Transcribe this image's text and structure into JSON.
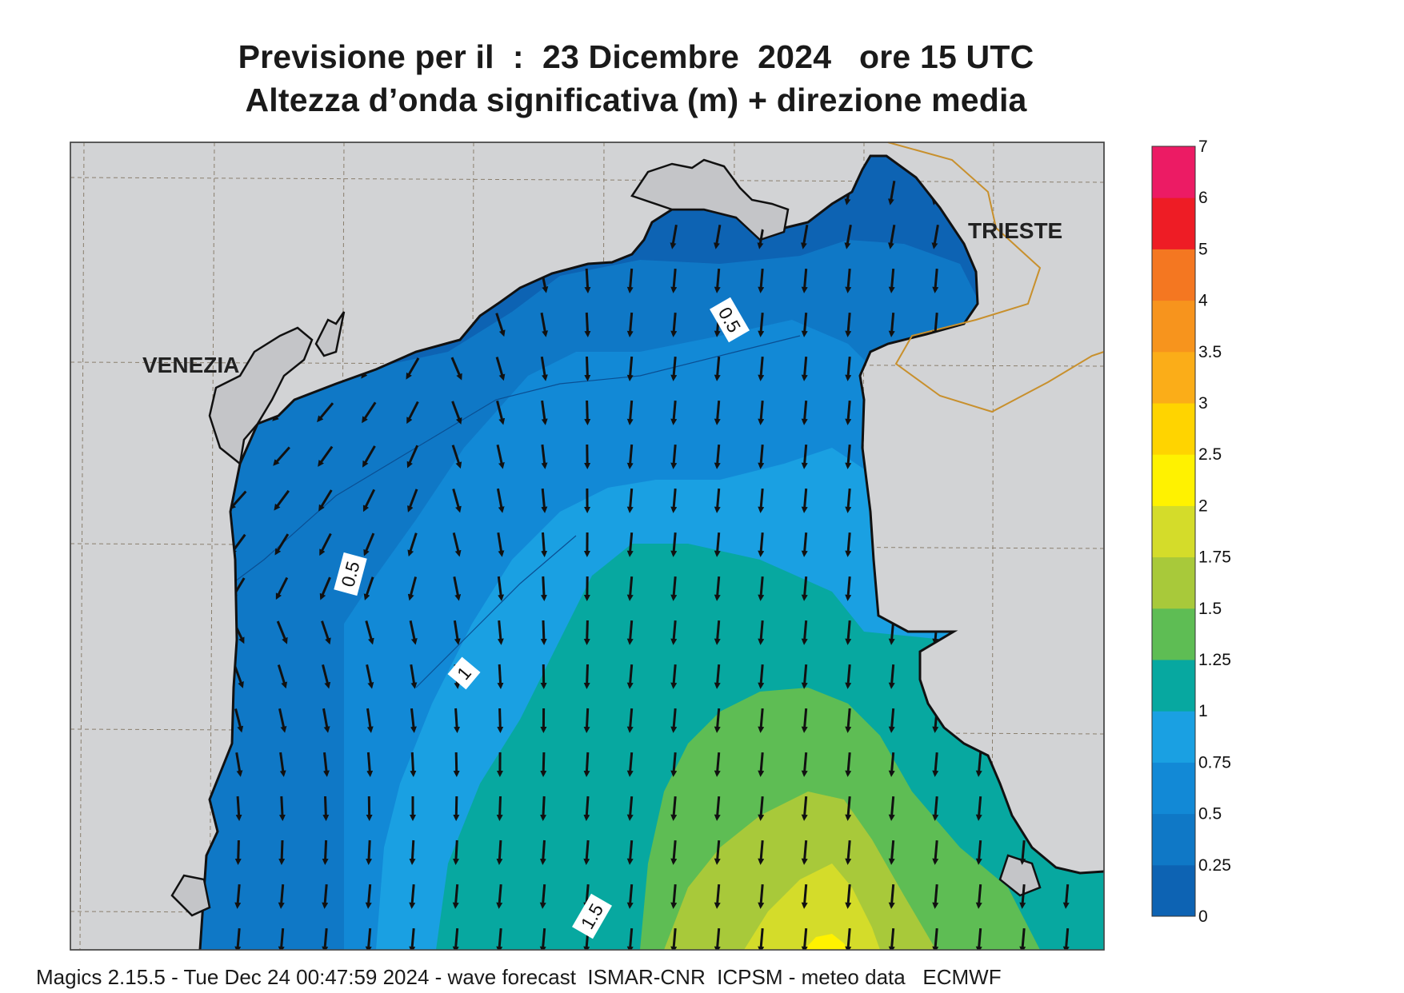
{
  "title": {
    "line1": "Previsione per il  :  23 Dicembre  2024   ore 15 UTC",
    "line2": "Altezza d’onda significativa (m) + direzione media"
  },
  "cities": {
    "venezia": "VENEZIA",
    "trieste": "TRIESTE"
  },
  "contour_labels": {
    "north": "0.5",
    "west": "0.5",
    "mid": "1",
    "south": "1.5"
  },
  "colorbar": {
    "labels": [
      "0",
      "0.25",
      "0.5",
      "0.75",
      "1",
      "1.25",
      "1.5",
      "1.75",
      "2",
      "2.5",
      "3",
      "3.5",
      "4",
      "5",
      "6",
      "7"
    ],
    "colors": [
      "#0d63b3",
      "#0f78c6",
      "#1289d6",
      "#1aa0e2",
      "#07a8a0",
      "#5ebd54",
      "#a8c93a",
      "#d4dc2a",
      "#fff200",
      "#ffd400",
      "#fbad18",
      "#f7941d",
      "#f47721",
      "#ee1c25",
      "#ec1b64"
    ]
  },
  "footer": "Magics 2.15.5 - Tue Dec 24 00:47:59 2024 - wave forecast  ISMAR-CNR  ICPSM - meteo data   ECMWF"
}
